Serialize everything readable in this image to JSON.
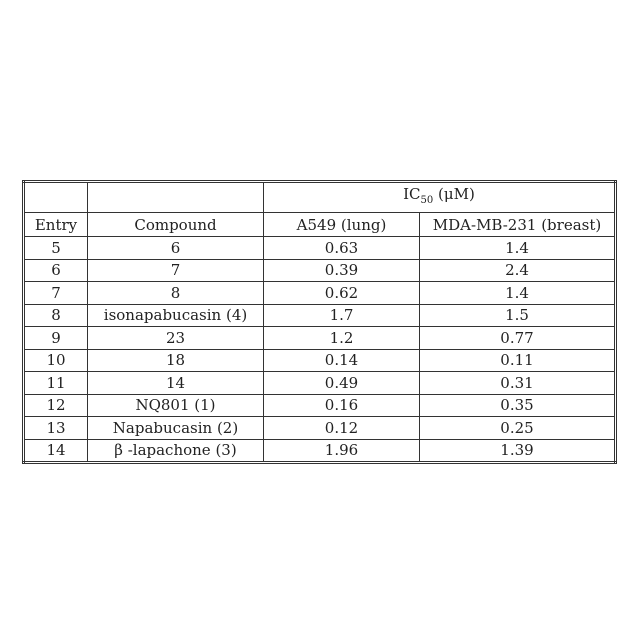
{
  "table": {
    "group_header": {
      "prefix": "IC",
      "subscript": "50",
      "unit": " (μM)"
    },
    "columns": [
      "Entry",
      "Compound",
      "A549 (lung)",
      "MDA-MB-231 (breast)"
    ],
    "rows": [
      [
        "5",
        "6",
        "0.63",
        "1.4"
      ],
      [
        "6",
        "7",
        "0.39",
        "2.4"
      ],
      [
        "7",
        "8",
        "0.62",
        "1.4"
      ],
      [
        "8",
        "isonapabucasin (4)",
        "1.7",
        "1.5"
      ],
      [
        "9",
        "23",
        "1.2",
        "0.77"
      ],
      [
        "10",
        "18",
        "0.14",
        "0.11"
      ],
      [
        "11",
        "14",
        "0.49",
        "0.31"
      ],
      [
        "12",
        "NQ801 (1)",
        "0.16",
        "0.35"
      ],
      [
        "13",
        "Napabucasin (2)",
        "0.12",
        "0.25"
      ],
      [
        "14",
        "β -lapachone (3)",
        "1.96",
        "1.39"
      ]
    ]
  }
}
